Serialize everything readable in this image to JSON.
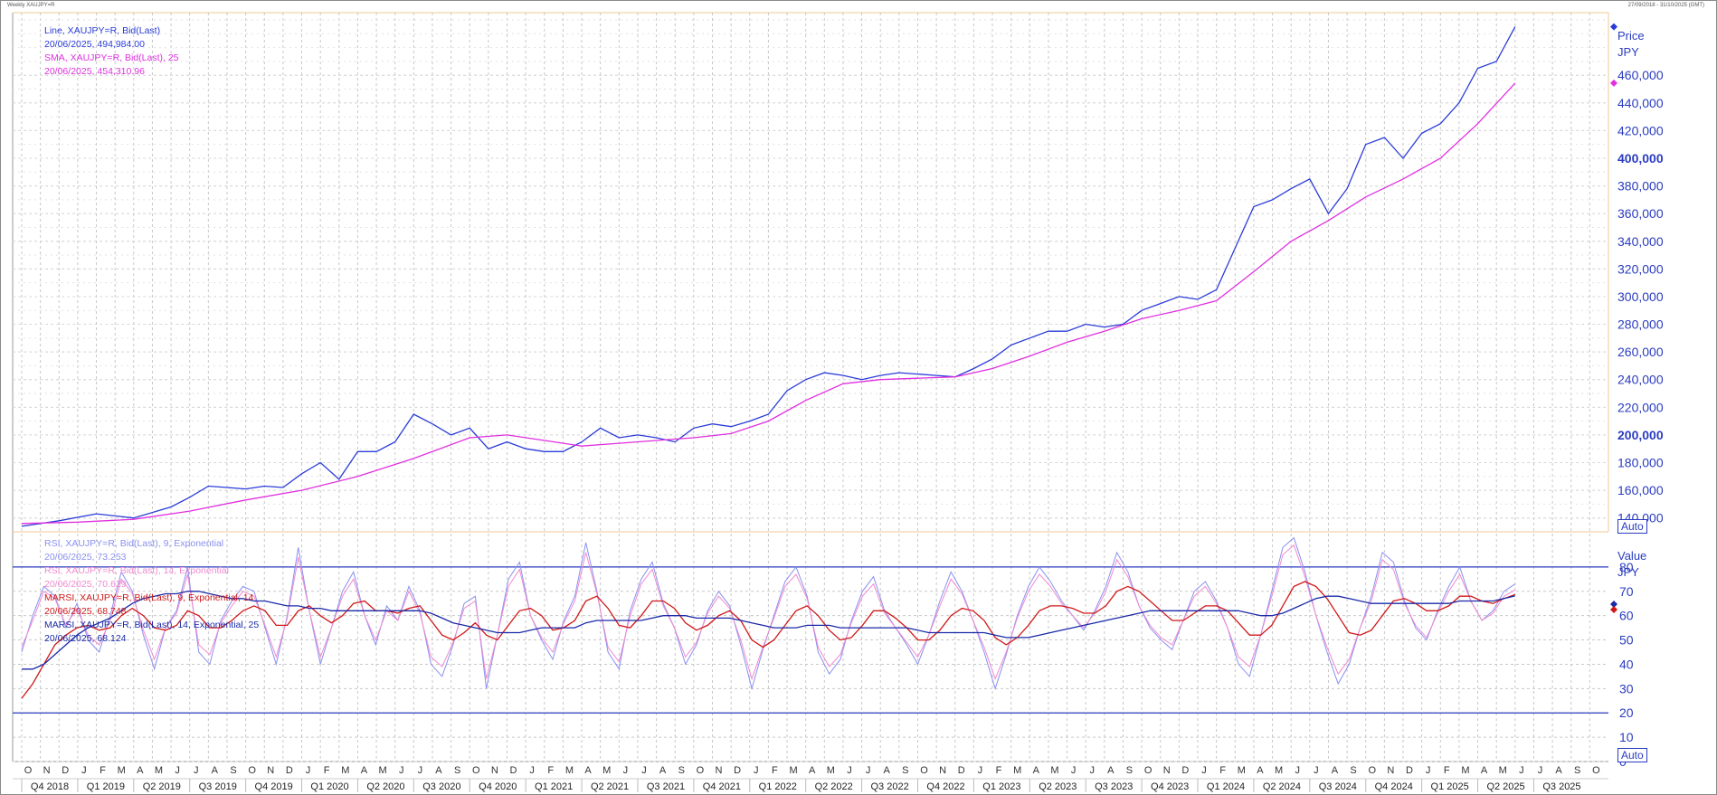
{
  "header": {
    "left": "Weekly XAUJPY=R",
    "right": "27/09/2018 - 31/10/2025 (GMT)"
  },
  "price_legend": {
    "line_name": "Line, XAUJPY=R, Bid(Last)",
    "line_value": "20/06/2025, 494,984.00",
    "sma_name": "SMA, XAUJPY=R, Bid(Last),  25",
    "sma_value": "20/06/2025, 454,310.96"
  },
  "ind_legend": {
    "rsi9_name": "RSI, XAUJPY=R, Bid(Last),  9, Exponential",
    "rsi9_value": "20/06/2025, 73.253",
    "rsi14_name": "RSI, XAUJPY=R, Bid(Last),  14, Exponential",
    "rsi14_value": "20/06/2025, 70.629",
    "marsi9_name": "MARSI, XAUJPY=R, Bid(Last),  9, Exponential, 14",
    "marsi9_value": "20/06/2025, 68.748",
    "marsi14_name": "MARSI, XAUJPY=R, Bid(Last),  14, Exponential, 25",
    "marsi14_value": "20/06/2025, 68.124"
  },
  "price_axis": {
    "title_1": "Price",
    "title_2": "JPY",
    "auto": "Auto"
  },
  "value_axis": {
    "title_1": "Value",
    "title_2": "JPY",
    "auto": "Auto"
  },
  "colors": {
    "line": "#2a3cd8",
    "sma": "#e030e0",
    "rsi9": "#8a90f0",
    "rsi14": "#f08ad0",
    "marsi9": "#d01818",
    "marsi14": "#1a2aa8",
    "grid": "#c8c8c8",
    "ref_lines": "#2a3cc0",
    "axis_text": "#2a3cc0",
    "frame_highlight": "#f0c890"
  },
  "chart_data": [
    {
      "type": "line",
      "title": "",
      "ylim": [
        130000,
        500000
      ],
      "y_ticks": [
        140000,
        160000,
        180000,
        200000,
        220000,
        240000,
        260000,
        280000,
        300000,
        320000,
        340000,
        360000,
        380000,
        400000,
        420000,
        440000,
        460000
      ],
      "y_tick_labels": [
        "140,000",
        "160,000",
        "180,000",
        "200,000",
        "220,000",
        "240,000",
        "260,000",
        "280,000",
        "300,000",
        "320,000",
        "340,000",
        "360,000",
        "380,000",
        "400,000",
        "420,000",
        "440,000",
        "460,000"
      ],
      "x_start": "2018-10",
      "x_end": "2025-10",
      "series": [
        {
          "name": "Line, XAUJPY=R, Bid(Last)",
          "x_months": [
            "2018-10",
            "2018-12",
            "2019-02",
            "2019-04",
            "2019-06",
            "2019-07",
            "2019-08",
            "2019-09",
            "2019-10",
            "2019-11",
            "2019-12",
            "2020-01",
            "2020-02",
            "2020-03",
            "2020-04",
            "2020-05",
            "2020-06",
            "2020-07",
            "2020-08",
            "2020-09",
            "2020-10",
            "2020-11",
            "2020-12",
            "2021-01",
            "2021-02",
            "2021-03",
            "2021-04",
            "2021-05",
            "2021-06",
            "2021-07",
            "2021-08",
            "2021-09",
            "2021-10",
            "2021-11",
            "2021-12",
            "2022-01",
            "2022-02",
            "2022-03",
            "2022-04",
            "2022-05",
            "2022-06",
            "2022-07",
            "2022-08",
            "2022-09",
            "2022-10",
            "2022-11",
            "2022-12",
            "2023-01",
            "2023-02",
            "2023-03",
            "2023-04",
            "2023-05",
            "2023-06",
            "2023-07",
            "2023-08",
            "2023-09",
            "2023-10",
            "2023-11",
            "2023-12",
            "2024-01",
            "2024-02",
            "2024-03",
            "2024-04",
            "2024-05",
            "2024-06",
            "2024-07",
            "2024-08",
            "2024-09",
            "2024-10",
            "2024-11",
            "2024-12",
            "2025-01",
            "2025-02",
            "2025-03",
            "2025-04",
            "2025-05",
            "2025-06"
          ],
          "values": [
            134000,
            138000,
            143000,
            140000,
            148000,
            155000,
            163000,
            162000,
            161000,
            163000,
            162000,
            172000,
            180000,
            168000,
            188000,
            188000,
            195000,
            215000,
            208000,
            200000,
            205000,
            190000,
            195000,
            190000,
            188000,
            188000,
            195000,
            205000,
            198000,
            200000,
            198000,
            195000,
            205000,
            208000,
            206000,
            210000,
            215000,
            232000,
            240000,
            245000,
            243000,
            240000,
            243000,
            245000,
            244000,
            243000,
            242000,
            248000,
            255000,
            265000,
            270000,
            275000,
            275000,
            280000,
            278000,
            280000,
            290000,
            295000,
            300000,
            298000,
            305000,
            335000,
            365000,
            370000,
            378000,
            385000,
            360000,
            378000,
            410000,
            415000,
            400000,
            418000,
            425000,
            440000,
            465000,
            470000,
            495000
          ]
        },
        {
          "name": "SMA, XAUJPY=R, Bid(Last),  25",
          "x_months": [
            "2018-10",
            "2019-01",
            "2019-04",
            "2019-07",
            "2019-10",
            "2020-01",
            "2020-04",
            "2020-07",
            "2020-10",
            "2020-12",
            "2021-02",
            "2021-04",
            "2021-06",
            "2021-08",
            "2021-10",
            "2021-12",
            "2022-02",
            "2022-04",
            "2022-06",
            "2022-08",
            "2022-10",
            "2022-12",
            "2023-02",
            "2023-04",
            "2023-06",
            "2023-08",
            "2023-10",
            "2023-12",
            "2024-02",
            "2024-04",
            "2024-06",
            "2024-08",
            "2024-10",
            "2024-12",
            "2025-02",
            "2025-04",
            "2025-06"
          ],
          "values": [
            136000,
            137000,
            139000,
            145000,
            153000,
            160000,
            170000,
            183000,
            198000,
            200000,
            196000,
            192000,
            194000,
            196000,
            198000,
            201000,
            210000,
            225000,
            237000,
            240000,
            241000,
            242000,
            248000,
            257000,
            267000,
            275000,
            284000,
            290000,
            297000,
            318000,
            340000,
            355000,
            372000,
            385000,
            400000,
            425000,
            454311
          ]
        }
      ]
    },
    {
      "type": "line",
      "title": "",
      "ylim": [
        0,
        90
      ],
      "y_ticks": [
        0,
        10,
        20,
        30,
        40,
        50,
        60,
        70,
        80
      ],
      "reference_lines": [
        20,
        80
      ],
      "series": [
        {
          "name": "RSI, XAUJPY=R, Bid(Last),  9, Exponential",
          "values": [
            45,
            60,
            72,
            68,
            55,
            65,
            50,
            45,
            60,
            78,
            70,
            52,
            38,
            55,
            62,
            80,
            45,
            40,
            58,
            66,
            72,
            70,
            55,
            40,
            60,
            88,
            62,
            40,
            55,
            70,
            78,
            60,
            48,
            64,
            58,
            72,
            62,
            40,
            35,
            48,
            65,
            68,
            30,
            52,
            75,
            82,
            60,
            50,
            42,
            58,
            68,
            90,
            70,
            45,
            38,
            62,
            75,
            82,
            65,
            55,
            40,
            48,
            62,
            70,
            64,
            48,
            30,
            46,
            60,
            74,
            80,
            68,
            45,
            36,
            42,
            58,
            70,
            76,
            62,
            55,
            48,
            40,
            52,
            66,
            78,
            70,
            58,
            45,
            30,
            44,
            60,
            72,
            80,
            74,
            66,
            60,
            54,
            62,
            72,
            86,
            78,
            64,
            55,
            50,
            46,
            58,
            70,
            74,
            66,
            55,
            40,
            35,
            52,
            70,
            88,
            92,
            78,
            60,
            45,
            32,
            40,
            55,
            68,
            86,
            82,
            66,
            55,
            50,
            62,
            72,
            80,
            66,
            58,
            62,
            70,
            73
          ]
        },
        {
          "name": "RSI, XAUJPY=R, Bid(Last),  14, Exponential",
          "values": [
            47,
            58,
            70,
            67,
            56,
            63,
            52,
            48,
            58,
            75,
            69,
            54,
            42,
            55,
            61,
            77,
            48,
            44,
            57,
            64,
            70,
            68,
            56,
            43,
            59,
            84,
            62,
            43,
            55,
            68,
            75,
            60,
            50,
            62,
            58,
            70,
            61,
            43,
            39,
            49,
            63,
            66,
            34,
            52,
            72,
            79,
            60,
            51,
            45,
            57,
            66,
            86,
            69,
            47,
            41,
            60,
            73,
            79,
            64,
            55,
            43,
            49,
            61,
            68,
            63,
            50,
            34,
            47,
            59,
            72,
            77,
            67,
            47,
            39,
            44,
            57,
            68,
            73,
            61,
            55,
            49,
            43,
            52,
            64,
            75,
            69,
            58,
            47,
            34,
            45,
            59,
            70,
            77,
            72,
            65,
            60,
            55,
            61,
            70,
            83,
            76,
            64,
            56,
            51,
            48,
            58,
            68,
            72,
            65,
            55,
            43,
            39,
            52,
            68,
            85,
            89,
            76,
            60,
            47,
            36,
            42,
            55,
            66,
            83,
            79,
            65,
            56,
            51,
            61,
            70,
            77,
            66,
            58,
            61,
            68,
            70.6
          ]
        },
        {
          "name": "MARSI, XAUJPY=R, Bid(Last),  9, Exponential, 14",
          "values": [
            26,
            32,
            40,
            48,
            52,
            55,
            56,
            54,
            55,
            60,
            63,
            60,
            55,
            54,
            56,
            62,
            60,
            55,
            55,
            58,
            62,
            64,
            62,
            56,
            56,
            62,
            64,
            60,
            57,
            60,
            65,
            66,
            62,
            62,
            61,
            63,
            64,
            58,
            52,
            50,
            53,
            57,
            52,
            50,
            56,
            62,
            63,
            60,
            54,
            55,
            58,
            66,
            68,
            63,
            56,
            55,
            60,
            66,
            66,
            63,
            57,
            54,
            56,
            60,
            62,
            58,
            50,
            47,
            50,
            56,
            62,
            64,
            60,
            54,
            50,
            51,
            56,
            62,
            62,
            59,
            55,
            50,
            50,
            54,
            60,
            63,
            62,
            58,
            51,
            48,
            51,
            56,
            62,
            64,
            64,
            63,
            61,
            61,
            64,
            70,
            72,
            70,
            66,
            62,
            58,
            58,
            61,
            64,
            64,
            62,
            57,
            52,
            52,
            56,
            64,
            72,
            74,
            72,
            67,
            60,
            53,
            52,
            54,
            60,
            66,
            67,
            65,
            62,
            62,
            64,
            68,
            68,
            66,
            65,
            67,
            68.7
          ]
        },
        {
          "name": "MARSI, XAUJPY=R, Bid(Last),  14, Exponential, 25",
          "values": [
            38,
            38,
            40,
            44,
            48,
            52,
            55,
            57,
            59,
            62,
            65,
            67,
            68,
            69,
            69,
            70,
            70,
            69,
            68,
            67,
            67,
            66,
            66,
            65,
            64,
            64,
            63,
            63,
            62,
            62,
            62,
            62,
            62,
            62,
            62,
            62,
            62,
            61,
            59,
            57,
            56,
            55,
            54,
            53,
            53,
            53,
            54,
            55,
            55,
            55,
            55,
            57,
            58,
            58,
            58,
            58,
            58,
            59,
            60,
            60,
            60,
            59,
            59,
            59,
            59,
            58,
            57,
            56,
            55,
            55,
            55,
            56,
            56,
            56,
            55,
            55,
            55,
            55,
            55,
            55,
            55,
            54,
            53,
            53,
            53,
            53,
            53,
            53,
            52,
            51,
            51,
            51,
            52,
            53,
            54,
            55,
            56,
            57,
            58,
            59,
            60,
            61,
            62,
            62,
            62,
            62,
            62,
            62,
            62,
            62,
            62,
            61,
            60,
            60,
            61,
            63,
            65,
            67,
            68,
            68,
            67,
            66,
            65,
            65,
            65,
            65,
            65,
            65,
            65,
            65,
            66,
            66,
            66,
            66,
            67,
            68.1
          ]
        }
      ]
    }
  ],
  "x_axis": {
    "months": [
      "O",
      "N",
      "D",
      "J",
      "F",
      "M",
      "A",
      "M",
      "J",
      "J",
      "A",
      "S",
      "O",
      "N",
      "D",
      "J",
      "F",
      "M",
      "A",
      "M",
      "J",
      "J",
      "A",
      "S",
      "O",
      "N",
      "D",
      "J",
      "F",
      "M",
      "A",
      "M",
      "J",
      "J",
      "A",
      "S",
      "O",
      "N",
      "D",
      "J",
      "F",
      "M",
      "A",
      "M",
      "J",
      "J",
      "A",
      "S",
      "O",
      "N",
      "D",
      "J",
      "F",
      "M",
      "A",
      "M",
      "J",
      "J",
      "A",
      "S",
      "O",
      "N",
      "D",
      "J",
      "F",
      "M",
      "A",
      "M",
      "J",
      "J",
      "A",
      "S",
      "O",
      "N",
      "D",
      "J",
      "F",
      "M",
      "A",
      "M",
      "J",
      "J",
      "A",
      "S",
      "O"
    ],
    "quarters": [
      "Q4 2018",
      "Q1 2019",
      "Q2 2019",
      "Q3 2019",
      "Q4 2019",
      "Q1 2020",
      "Q2 2020",
      "Q3 2020",
      "Q4 2020",
      "Q1 2021",
      "Q2 2021",
      "Q3 2021",
      "Q4 2021",
      "Q1 2022",
      "Q2 2022",
      "Q3 2022",
      "Q4 2022",
      "Q1 2023",
      "Q2 2023",
      "Q3 2023",
      "Q4 2023",
      "Q1 2024",
      "Q2 2024",
      "Q3 2024",
      "Q4 2024",
      "Q1 2025",
      "Q2 2025",
      "Q3 2025"
    ]
  }
}
